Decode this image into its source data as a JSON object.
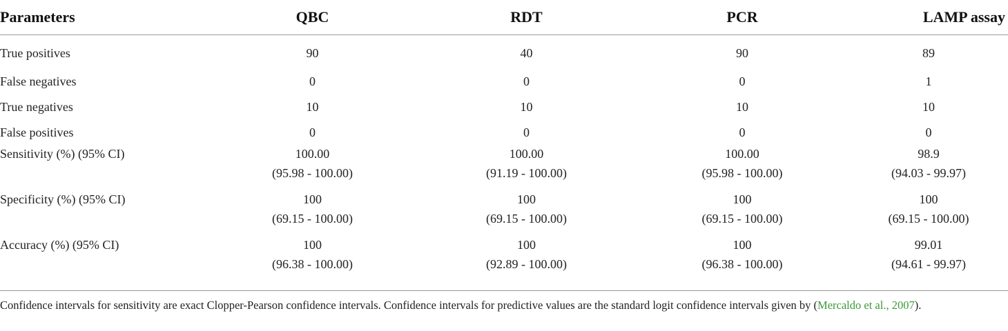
{
  "table": {
    "headers": [
      "Parameters",
      "QBC",
      "RDT",
      "PCR",
      "LAMP assay"
    ],
    "rows": [
      {
        "label": "True positives",
        "values": [
          [
            "90"
          ],
          [
            "40"
          ],
          [
            "90"
          ],
          [
            "89"
          ]
        ]
      },
      {
        "label": "False negatives",
        "values": [
          [
            "0"
          ],
          [
            "0"
          ],
          [
            "0"
          ],
          [
            "1"
          ]
        ]
      },
      {
        "label": "True negatives",
        "values": [
          [
            "10"
          ],
          [
            "10"
          ],
          [
            "10"
          ],
          [
            "10"
          ]
        ]
      },
      {
        "label": "False positives",
        "values": [
          [
            "0"
          ],
          [
            "0"
          ],
          [
            "0"
          ],
          [
            "0"
          ]
        ]
      },
      {
        "label": "Sensitivity (%) (95% CI)",
        "values": [
          [
            "100.00",
            "(95.98 - 100.00)"
          ],
          [
            "100.00",
            "(91.19 - 100.00)"
          ],
          [
            "100.00",
            "(95.98 - 100.00)"
          ],
          [
            "98.9",
            "(94.03 - 99.97)"
          ]
        ]
      },
      {
        "label": "Specificity (%) (95% CI)",
        "values": [
          [
            "100",
            "(69.15 - 100.00)"
          ],
          [
            "100",
            "(69.15 - 100.00)"
          ],
          [
            "100",
            "(69.15 - 100.00)"
          ],
          [
            "100",
            "(69.15 - 100.00)"
          ]
        ]
      },
      {
        "label": "Accuracy (%) (95% CI)",
        "values": [
          [
            "100",
            "(96.38 - 100.00)"
          ],
          [
            "100",
            "(92.89 - 100.00)"
          ],
          [
            "100",
            "(96.38 - 100.00)"
          ],
          [
            "99.01",
            "(94.61 -  99.97)"
          ]
        ]
      }
    ]
  },
  "footnote": {
    "text_before": "Confidence intervals for sensitivity are exact Clopper-Pearson confidence intervals. Confidence intervals for predictive values are the standard logit confidence intervals given by (",
    "reference": "Mercaldo et al., 2007",
    "text_after": ")."
  },
  "colors": {
    "reference_link": "#3a9a3a",
    "rule": "#9a9a9a"
  }
}
